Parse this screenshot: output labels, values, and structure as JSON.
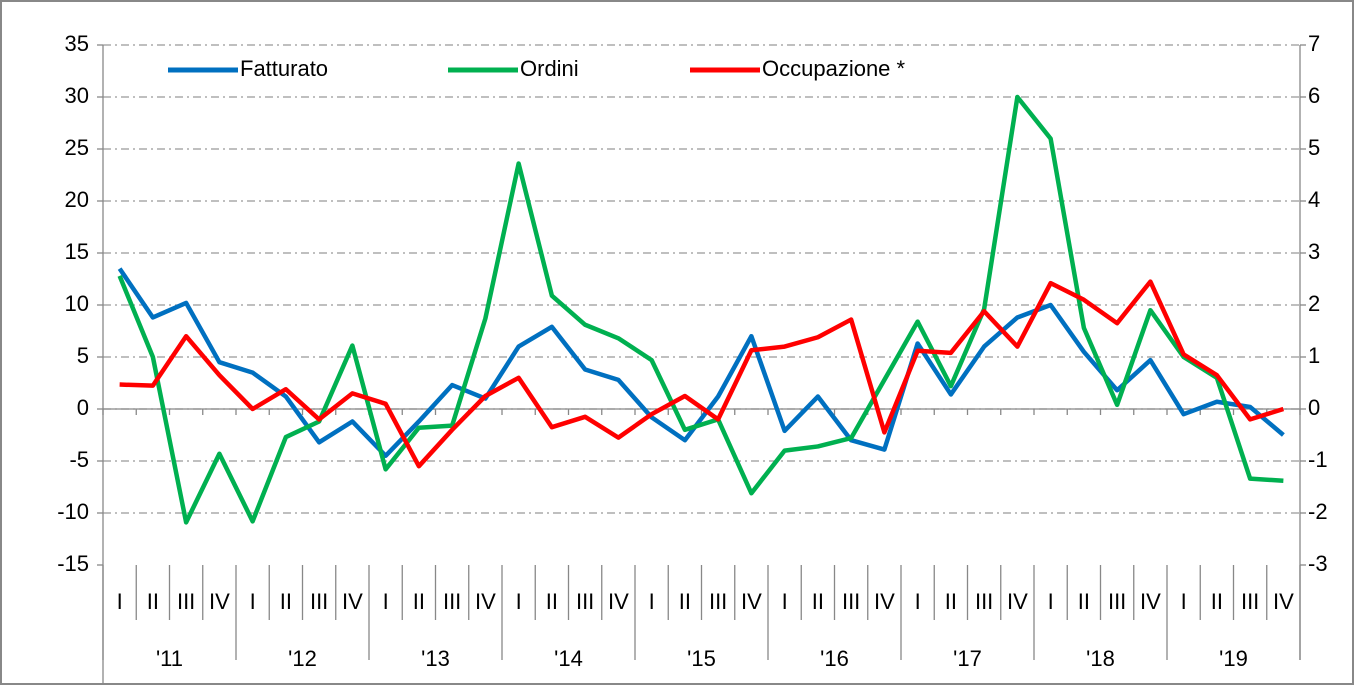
{
  "chart_data": {
    "type": "line",
    "categories": [
      "I",
      "II",
      "III",
      "IV",
      "I",
      "II",
      "III",
      "IV",
      "I",
      "II",
      "III",
      "IV",
      "I",
      "II",
      "III",
      "IV",
      "I",
      "II",
      "III",
      "IV",
      "I",
      "II",
      "III",
      "IV",
      "I",
      "II",
      "III",
      "IV",
      "I",
      "II",
      "III",
      "IV",
      "I",
      "II",
      "III",
      "IV"
    ],
    "year_groups": [
      "'11",
      "'12",
      "'13",
      "'14",
      "'15",
      "'16",
      "'17",
      "'18",
      "'19"
    ],
    "series": [
      {
        "name": "Fatturato",
        "color": "#0070c0",
        "values": [
          13.5,
          8.8,
          10.2,
          4.5,
          3.5,
          1.2,
          -3.2,
          -1.2,
          -4.5,
          -1.2,
          2.3,
          1.0,
          6.0,
          7.9,
          3.8,
          2.8,
          -0.8,
          -3.0,
          1.2,
          7.0,
          -2.1,
          1.2,
          -3.0,
          -3.9,
          6.3,
          1.4,
          6.0,
          8.8,
          10.0,
          5.5,
          1.8,
          4.7,
          -0.5,
          0.7,
          0.2,
          -2.5
        ]
      },
      {
        "name": "Ordini",
        "color": "#00b050",
        "values": [
          12.8,
          5.0,
          -10.9,
          -4.3,
          -10.8,
          -2.7,
          -1.2,
          6.1,
          -5.8,
          -1.8,
          -1.6,
          8.7,
          23.6,
          10.9,
          8.1,
          6.8,
          4.7,
          -2.0,
          -1.0,
          -8.1,
          -4.0,
          -3.6,
          -2.8,
          2.8,
          8.4,
          2.2,
          9.6,
          30.0,
          26.0,
          7.8,
          0.4,
          9.5,
          5.0,
          3.0,
          -6.7,
          -6.9
        ]
      },
      {
        "name": "Occupazione *",
        "color": "#ff0000",
        "axis": "y2",
        "values": [
          0.47,
          0.45,
          1.4,
          0.65,
          0.0,
          0.38,
          -0.2,
          0.3,
          0.1,
          -1.1,
          -0.4,
          0.25,
          0.6,
          -0.35,
          -0.15,
          -0.55,
          -0.1,
          0.25,
          -0.2,
          1.13,
          1.2,
          1.38,
          1.72,
          -0.45,
          1.12,
          1.08,
          1.88,
          1.2,
          2.42,
          2.1,
          1.65,
          2.45,
          1.05,
          0.65,
          -0.2,
          0.0
        ]
      }
    ],
    "ylim": [
      -15,
      35
    ],
    "yticks": [
      -15,
      -10,
      -5,
      0,
      5,
      10,
      15,
      20,
      25,
      30,
      35
    ],
    "y2lim": [
      -3,
      7
    ],
    "y2ticks": [
      -3,
      -2,
      -1,
      0,
      1,
      2,
      3,
      4,
      5,
      6,
      7
    ],
    "grid": true,
    "legend": "top"
  }
}
